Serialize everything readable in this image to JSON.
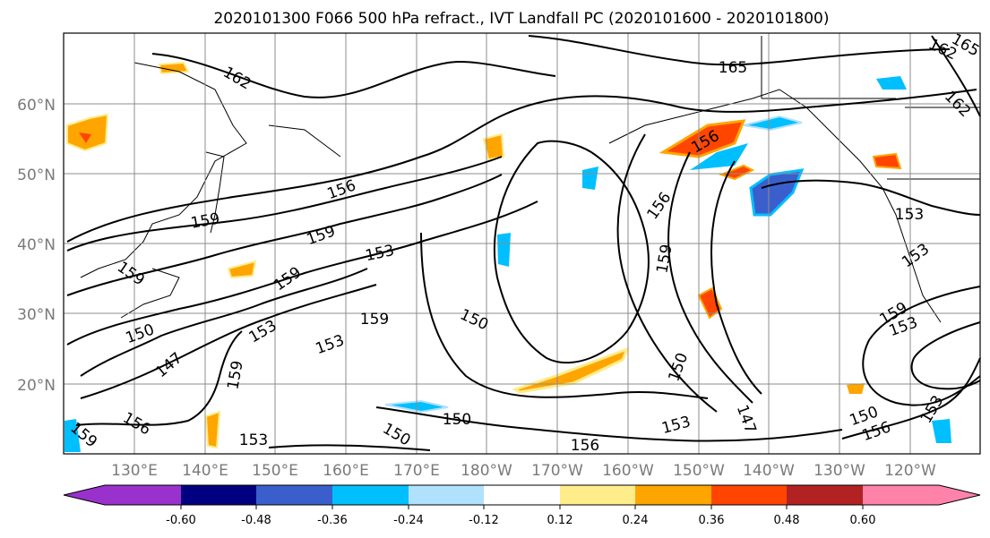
{
  "title": "2020101300 F066 500 hPa refract., IVT Landfall PC (2020101600 - 2020101800)",
  "map": {
    "lat_labels": [
      "20°N",
      "30°N",
      "40°N",
      "50°N",
      "60°N"
    ],
    "lon_labels": [
      "130°E",
      "140°E",
      "150°E",
      "160°E",
      "170°E",
      "180°W",
      "170°W",
      "160°W",
      "150°W",
      "140°W",
      "130°W",
      "120°W"
    ],
    "contour_labels": [
      "165",
      "162",
      "162",
      "156",
      "159",
      "159",
      "153",
      "159",
      "159",
      "159",
      "150",
      "153",
      "153",
      "147",
      "159",
      "150",
      "156",
      "153",
      "150",
      "156",
      "156",
      "159",
      "156",
      "153",
      "150",
      "147",
      "153",
      "153",
      "150",
      "156",
      "153",
      "153",
      "150",
      "159",
      "159",
      "162",
      "165"
    ]
  },
  "colorbar": {
    "colors": [
      "#9932cc",
      "#000080",
      "#3a5fcd",
      "#00bfff",
      "#b0e2ff",
      "#ffffff",
      "#ffec8b",
      "#ffa500",
      "#ff4500",
      "#b22222",
      "#ff82ab"
    ],
    "tick_labels": [
      "-0.60",
      "-0.48",
      "-0.36",
      "-0.24",
      "-0.12",
      "0.12",
      "0.24",
      "0.36",
      "0.48",
      "0.60"
    ]
  }
}
